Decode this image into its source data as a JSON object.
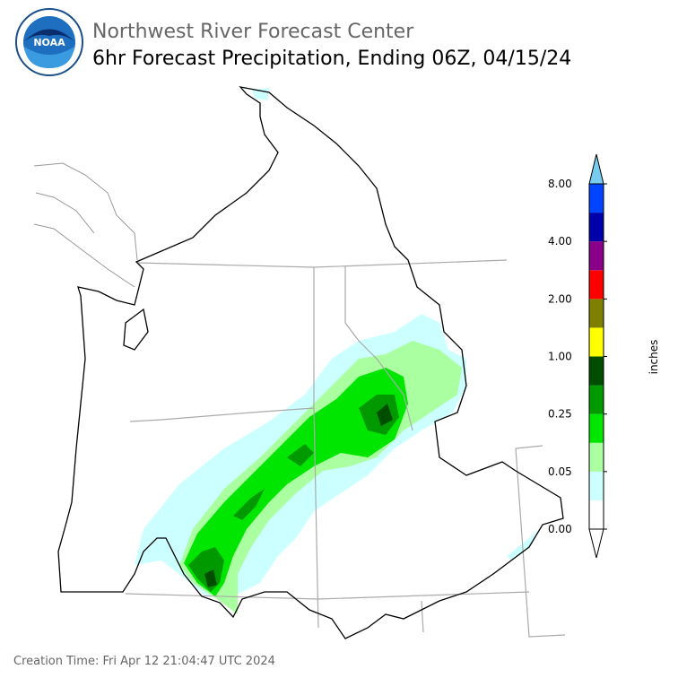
{
  "header": {
    "title": "Northwest River Forecast Center",
    "subtitle": "6hr Forecast Precipitation, Ending 06Z, 04/15/24",
    "logo_text": "NOAA"
  },
  "colorbar": {
    "label": "inches",
    "colors": [
      "#ffffff",
      "#ccffff",
      "#aaffa0",
      "#00e600",
      "#009900",
      "#004d00",
      "#ffff00",
      "#808000",
      "#ff0000",
      "#880088",
      "#0000aa",
      "#0044ff"
    ],
    "over_color": "#77ccee",
    "under_color": "#ffffff",
    "ticks": [
      "0.00",
      "0.05",
      "0.25",
      "1.00",
      "2.00",
      "4.00",
      "8.00"
    ]
  },
  "footer": {
    "creation_time": "Creation Time: Fri Apr 12 21:04:47 UTC 2024"
  }
}
